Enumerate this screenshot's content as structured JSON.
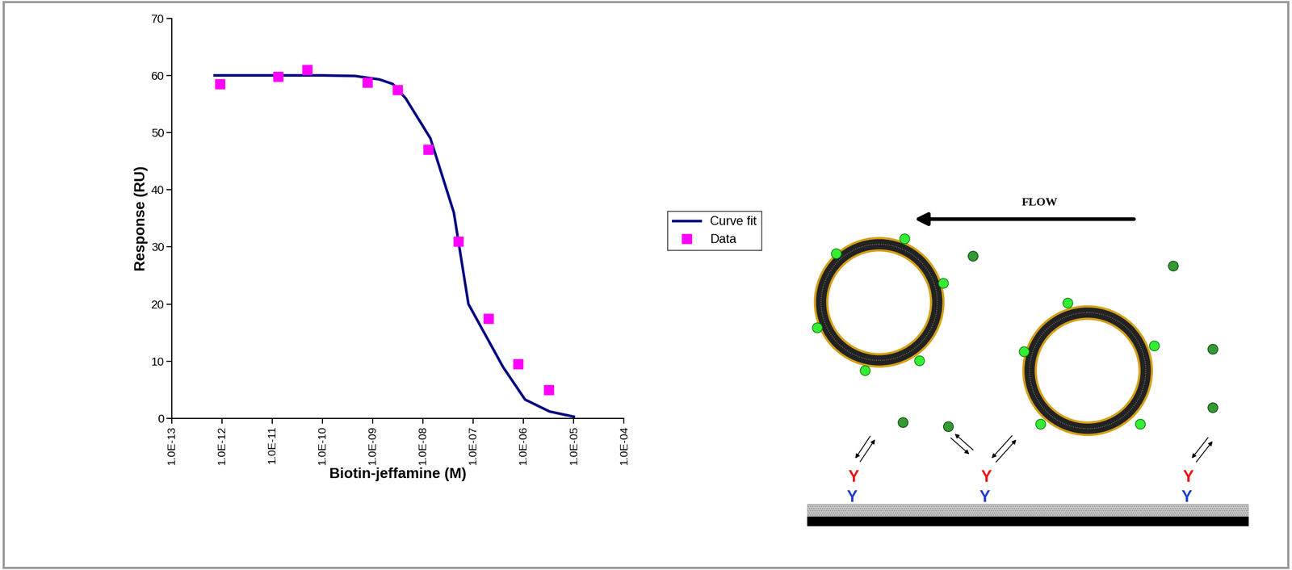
{
  "chart_data": {
    "type": "line",
    "x_label": "Biotin-jeffamine (M)",
    "y_label": "Response (RU)",
    "log": "x",
    "xlim": [
      1e-13,
      0.0001
    ],
    "xticks": [
      {
        "value": 1e-13,
        "label": "1.0E-13"
      },
      {
        "value": 1e-12,
        "label": "1.0E-12"
      },
      {
        "value": 1e-11,
        "label": "1.0E-11"
      },
      {
        "value": 1e-10,
        "label": "1.0E-10"
      },
      {
        "value": 1e-09,
        "label": "1.0E-09"
      },
      {
        "value": 1e-08,
        "label": "1.0E-08"
      },
      {
        "value": 1e-07,
        "label": "1.0E-07"
      },
      {
        "value": 1e-06,
        "label": "1.0E-06"
      },
      {
        "value": 1e-05,
        "label": "1.0E-05"
      },
      {
        "value": 0.0001,
        "label": "1.0E-04"
      }
    ],
    "ylim": [
      0,
      70
    ],
    "yticks": [
      0,
      10,
      20,
      30,
      40,
      50,
      60,
      70
    ],
    "grid": false,
    "legend": "center left",
    "series": [
      {
        "name": "Curve fit",
        "type": "line",
        "color": "#000080",
        "line_style": "solid",
        "x": [
          7.1e-13,
          1e-11,
          1e-10,
          4.4e-10,
          1.35e-09,
          2.5e-09,
          4.5e-09,
          1.4e-08,
          4.1e-08,
          8e-08,
          3.9e-07,
          1.07e-06,
          3.3e-06,
          1e-05
        ],
        "values": [
          60,
          60,
          60,
          59.9,
          59.3,
          58.5,
          56,
          49,
          36,
          20,
          9,
          3.3,
          1.2,
          0.3
        ]
      },
      {
        "name": "Data",
        "type": "scatter",
        "color": "#ff00ff",
        "marker": "square",
        "x": [
          9e-13,
          1.3e-11,
          4.9e-11,
          7.9e-10,
          3.1e-09,
          1.26e-08,
          5e-08,
          2e-07,
          7.8e-07,
          3.2e-06
        ],
        "values": [
          58.5,
          59.8,
          61,
          58.8,
          57.5,
          47,
          31,
          17.5,
          9.5,
          5
        ]
      }
    ]
  },
  "diagram": {
    "flow_label": "FLOW",
    "antibody_label": "Y"
  }
}
